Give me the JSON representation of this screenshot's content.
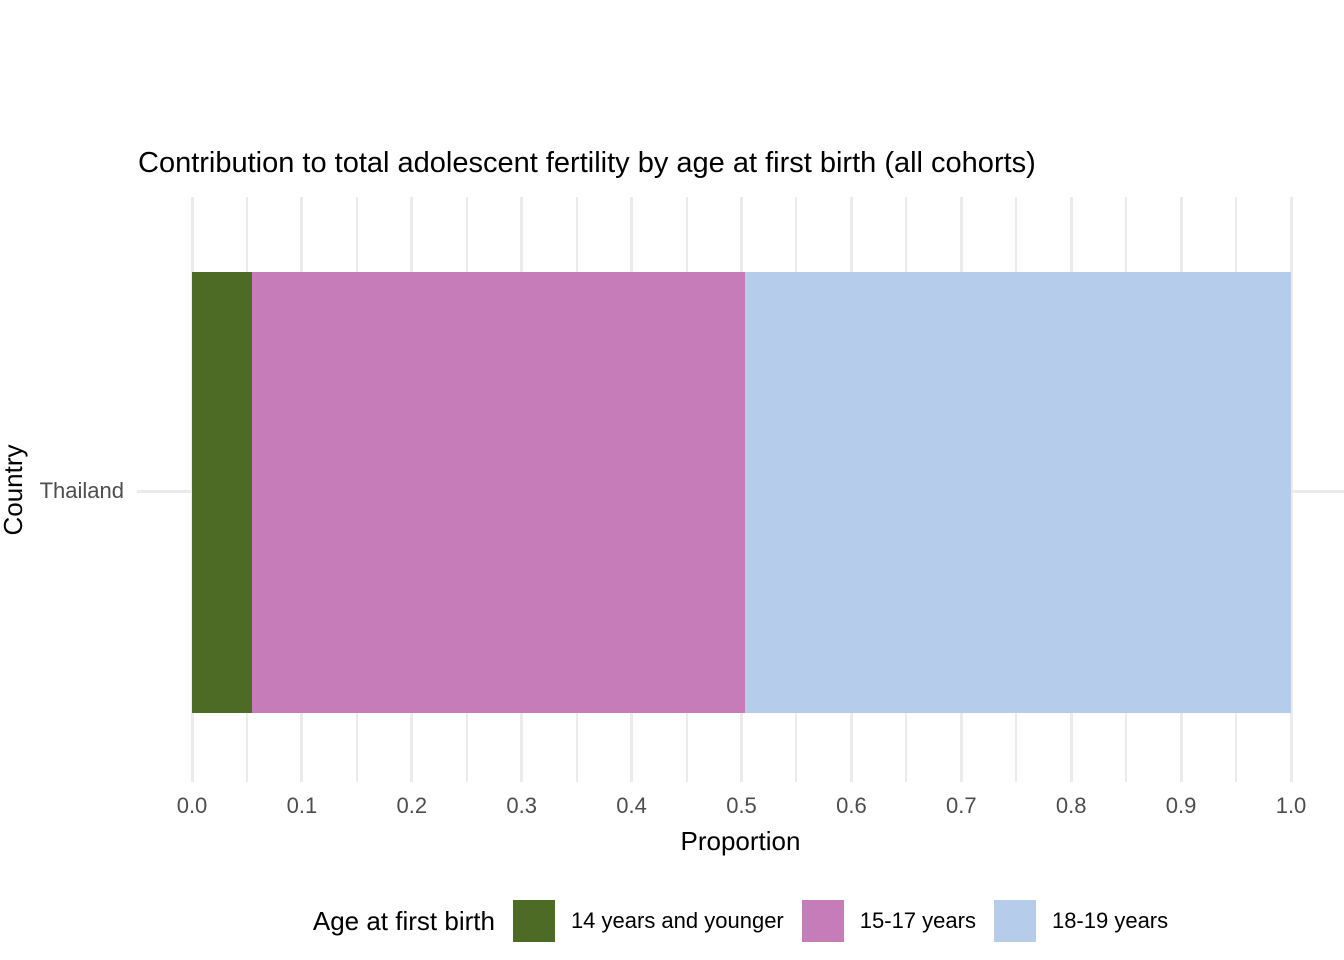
{
  "chart_data": {
    "type": "bar",
    "orientation": "horizontal",
    "stacked": true,
    "title": "Contribution to total adolescent fertility by age at first birth (all cohorts)",
    "xlabel": "Proportion",
    "ylabel": "Country",
    "categories": [
      "Thailand"
    ],
    "series": [
      {
        "name": "14 years and younger",
        "color": "#4D6B24",
        "values": [
          0.055
        ]
      },
      {
        "name": "15-17 years",
        "color": "#C77CBA",
        "values": [
          0.448
        ]
      },
      {
        "name": "18-19 years",
        "color": "#B5CDEB",
        "values": [
          0.497
        ]
      }
    ],
    "xlim": [
      0.0,
      1.0
    ],
    "x_tick_values": [
      0.0,
      0.1,
      0.2,
      0.3,
      0.4,
      0.5,
      0.6,
      0.7,
      0.8,
      0.9,
      1.0
    ],
    "x_tick_labels": [
      "0.0",
      "0.1",
      "0.2",
      "0.3",
      "0.4",
      "0.5",
      "0.6",
      "0.7",
      "0.8",
      "0.9",
      "1.0"
    ],
    "x_minor_tick_values": [
      0.05,
      0.15,
      0.25,
      0.35,
      0.45,
      0.55,
      0.65,
      0.75,
      0.85,
      0.95
    ],
    "grid": true,
    "legend_position": "bottom",
    "legend_title": "Age at first birth"
  },
  "style": {
    "background_color": "#FFFFFF",
    "grid_color": "#EBEBEB",
    "tick_label_color": "#4D4D4D",
    "text_color": "#000000"
  }
}
